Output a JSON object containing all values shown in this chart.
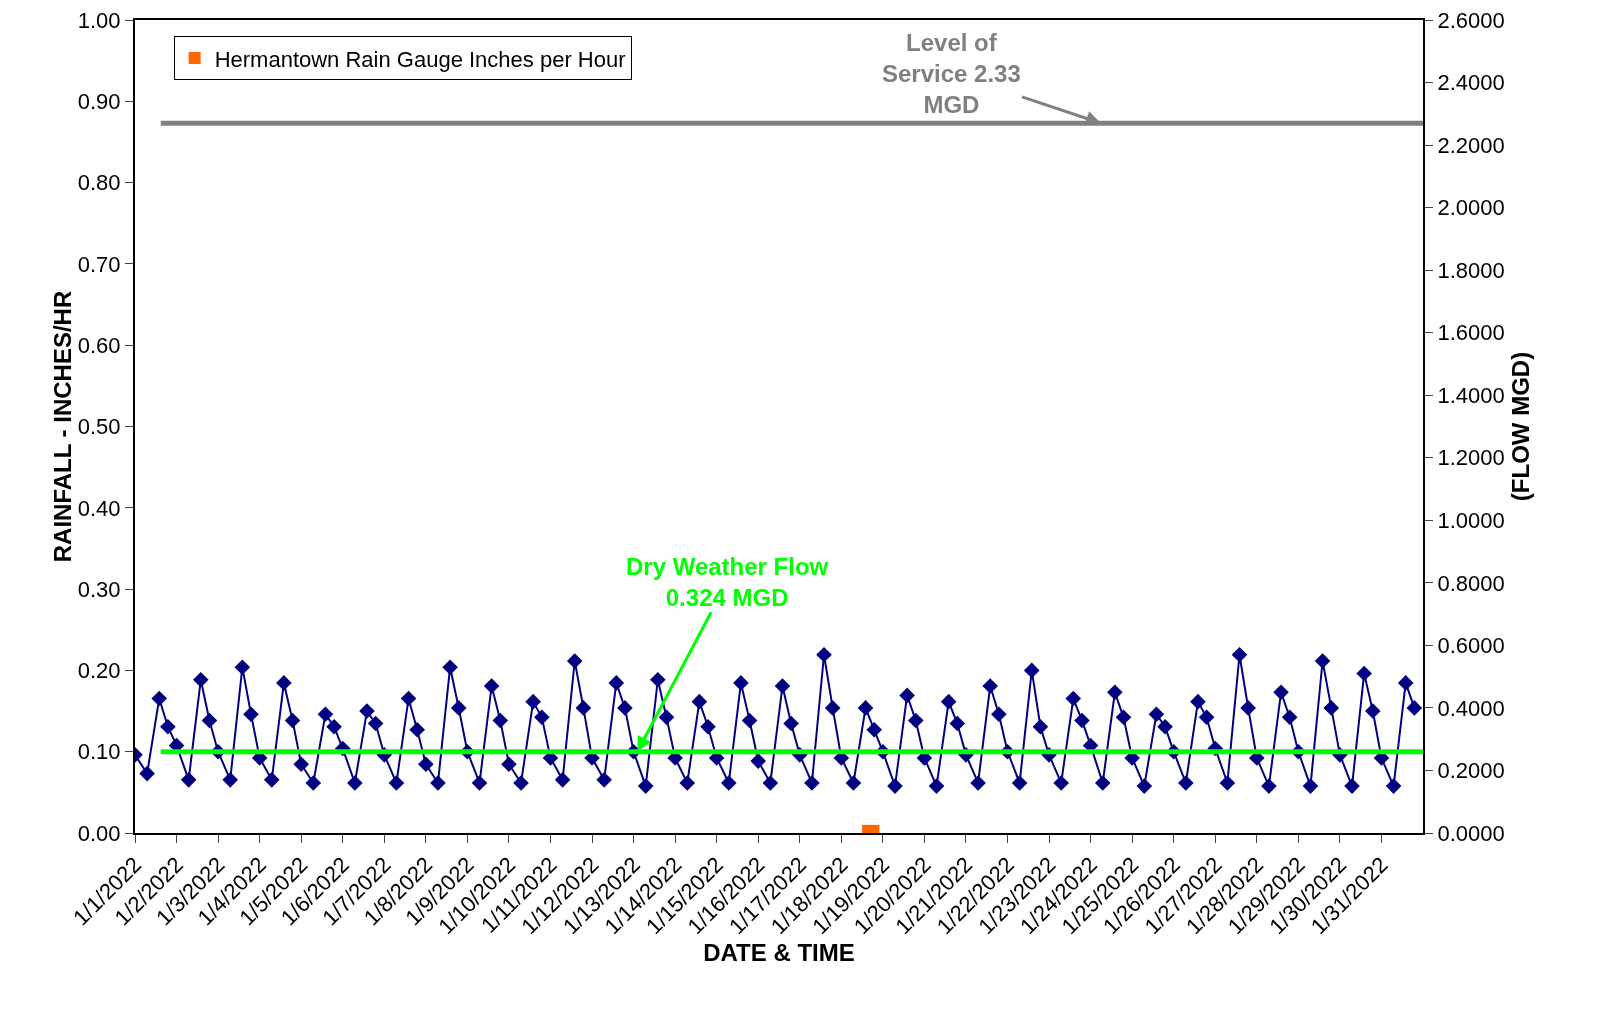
{
  "chart_data": {
    "type": "line",
    "xlabel": "DATE & TIME",
    "ylabel": "RAINFALL - INCHES/HR",
    "y2label": "(FLOW MGD)",
    "xlim": [
      "2022-01-01",
      "2022-02-01"
    ],
    "xticks": [
      {
        "value": "2022-01-01",
        "label": "1/1/2022"
      },
      {
        "value": "2022-01-02",
        "label": "1/2/2022"
      },
      {
        "value": "2022-01-03",
        "label": "1/3/2022"
      },
      {
        "value": "2022-01-04",
        "label": "1/4/2022"
      },
      {
        "value": "2022-01-05",
        "label": "1/5/2022"
      },
      {
        "value": "2022-01-06",
        "label": "1/6/2022"
      },
      {
        "value": "2022-01-07",
        "label": "1/7/2022"
      },
      {
        "value": "2022-01-08",
        "label": "1/8/2022"
      },
      {
        "value": "2022-01-09",
        "label": "1/9/2022"
      },
      {
        "value": "2022-01-10",
        "label": "1/10/2022"
      },
      {
        "value": "2022-01-11",
        "label": "1/11/2022"
      },
      {
        "value": "2022-01-12",
        "label": "1/12/2022"
      },
      {
        "value": "2022-01-13",
        "label": "1/13/2022"
      },
      {
        "value": "2022-01-14",
        "label": "1/14/2022"
      },
      {
        "value": "2022-01-15",
        "label": "1/15/2022"
      },
      {
        "value": "2022-01-16",
        "label": "1/16/2022"
      },
      {
        "value": "2022-01-17",
        "label": "1/17/2022"
      },
      {
        "value": "2022-01-18",
        "label": "1/18/2022"
      },
      {
        "value": "2022-01-19",
        "label": "1/19/2022"
      },
      {
        "value": "2022-01-20",
        "label": "1/20/2022"
      },
      {
        "value": "2022-01-21",
        "label": "1/21/2022"
      },
      {
        "value": "2022-01-22",
        "label": "1/22/2022"
      },
      {
        "value": "2022-01-23",
        "label": "1/23/2022"
      },
      {
        "value": "2022-01-24",
        "label": "1/24/2022"
      },
      {
        "value": "2022-01-25",
        "label": "1/25/2022"
      },
      {
        "value": "2022-01-26",
        "label": "1/26/2022"
      },
      {
        "value": "2022-01-27",
        "label": "1/27/2022"
      },
      {
        "value": "2022-01-28",
        "label": "1/28/2022"
      },
      {
        "value": "2022-01-29",
        "label": "1/29/2022"
      },
      {
        "value": "2022-01-30",
        "label": "1/30/2022"
      },
      {
        "value": "2022-01-31",
        "label": "1/31/2022"
      }
    ],
    "ylim": [
      0,
      1
    ],
    "yticks": [
      {
        "value": 0,
        "label": "0.00"
      },
      {
        "value": 0.1,
        "label": "0.10"
      },
      {
        "value": 0.2,
        "label": "0.20"
      },
      {
        "value": 0.3,
        "label": "0.30"
      },
      {
        "value": 0.4,
        "label": "0.40"
      },
      {
        "value": 0.5,
        "label": "0.50"
      },
      {
        "value": 0.6,
        "label": "0.60"
      },
      {
        "value": 0.7,
        "label": "0.70"
      },
      {
        "value": 0.8,
        "label": "0.80"
      },
      {
        "value": 0.9,
        "label": "0.90"
      },
      {
        "value": 1,
        "label": "1.00"
      }
    ],
    "y2lim": [
      0,
      2.6
    ],
    "y2ticks": [
      {
        "value": 0,
        "label": "0.0000"
      },
      {
        "value": 0.2,
        "label": "0.2000"
      },
      {
        "value": 0.4,
        "label": "0.4000"
      },
      {
        "value": 0.6,
        "label": "0.6000"
      },
      {
        "value": 0.8,
        "label": "0.8000"
      },
      {
        "value": 1,
        "label": "1.0000"
      },
      {
        "value": 1.2,
        "label": "1.2000"
      },
      {
        "value": 1.4,
        "label": "1.4000"
      },
      {
        "value": 1.6,
        "label": "1.6000"
      },
      {
        "value": 1.8,
        "label": "1.8000"
      },
      {
        "value": 2,
        "label": "2.0000"
      },
      {
        "value": 2.2,
        "label": "2.2000"
      },
      {
        "value": 2.4,
        "label": "2.4000"
      },
      {
        "value": 2.6,
        "label": "2.6000"
      }
    ],
    "grid": false,
    "legend": "top left",
    "line_style": "solid",
    "series": [
      {
        "name": "Hermantown Rain Gauge Inches per Hour",
        "type": "bar",
        "color": "#ff6600",
        "x": [
          "2022-01-18T17:00"
        ],
        "values": [
          0.01
        ]
      },
      {
        "axis": "y2",
        "color": "#000080",
        "marker": "diamond",
        "x": [
          "2022-01-01T00:00",
          "2022-01-01T07:00",
          "2022-01-01T14:00",
          "2022-01-01T19:00",
          "2022-01-02T00:00",
          "2022-01-02T07:00",
          "2022-01-02T14:00",
          "2022-01-02T19:00",
          "2022-01-03T00:00",
          "2022-01-03T07:00",
          "2022-01-03T14:00",
          "2022-01-03T19:00",
          "2022-01-04T00:00",
          "2022-01-04T07:00",
          "2022-01-04T14:00",
          "2022-01-04T19:00",
          "2022-01-05T00:00",
          "2022-01-05T07:00",
          "2022-01-05T14:00",
          "2022-01-05T19:00",
          "2022-01-06T00:00",
          "2022-01-06T07:00",
          "2022-01-06T14:00",
          "2022-01-06T19:00",
          "2022-01-07T00:00",
          "2022-01-07T07:00",
          "2022-01-07T14:00",
          "2022-01-07T19:00",
          "2022-01-08T00:00",
          "2022-01-08T07:00",
          "2022-01-08T14:00",
          "2022-01-08T19:00",
          "2022-01-09T00:00",
          "2022-01-09T07:00",
          "2022-01-09T14:00",
          "2022-01-09T19:00",
          "2022-01-10T00:00",
          "2022-01-10T07:00",
          "2022-01-10T14:00",
          "2022-01-10T19:00",
          "2022-01-11T00:00",
          "2022-01-11T07:00",
          "2022-01-11T14:00",
          "2022-01-11T19:00",
          "2022-01-12T00:00",
          "2022-01-12T07:00",
          "2022-01-12T14:00",
          "2022-01-12T19:00",
          "2022-01-13T00:00",
          "2022-01-13T07:00",
          "2022-01-13T14:00",
          "2022-01-13T19:00",
          "2022-01-14T00:00",
          "2022-01-14T07:00",
          "2022-01-14T14:00",
          "2022-01-14T19:00",
          "2022-01-15T00:00",
          "2022-01-15T07:00",
          "2022-01-15T14:00",
          "2022-01-15T19:00",
          "2022-01-16T00:00",
          "2022-01-16T07:00",
          "2022-01-16T14:00",
          "2022-01-16T19:00",
          "2022-01-17T00:00",
          "2022-01-17T07:00",
          "2022-01-17T14:00",
          "2022-01-17T19:00",
          "2022-01-18T00:00",
          "2022-01-18T07:00",
          "2022-01-18T14:00",
          "2022-01-18T19:00",
          "2022-01-19T00:00",
          "2022-01-19T07:00",
          "2022-01-19T14:00",
          "2022-01-19T19:00",
          "2022-01-20T00:00",
          "2022-01-20T07:00",
          "2022-01-20T14:00",
          "2022-01-20T19:00",
          "2022-01-21T00:00",
          "2022-01-21T07:00",
          "2022-01-21T14:00",
          "2022-01-21T19:00",
          "2022-01-22T00:00",
          "2022-01-22T07:00",
          "2022-01-22T14:00",
          "2022-01-22T19:00",
          "2022-01-23T00:00",
          "2022-01-23T07:00",
          "2022-01-23T14:00",
          "2022-01-23T19:00",
          "2022-01-24T00:00",
          "2022-01-24T07:00",
          "2022-01-24T14:00",
          "2022-01-24T19:00",
          "2022-01-25T00:00",
          "2022-01-25T07:00",
          "2022-01-25T14:00",
          "2022-01-25T19:00",
          "2022-01-26T00:00",
          "2022-01-26T07:00",
          "2022-01-26T14:00",
          "2022-01-26T19:00",
          "2022-01-27T00:00",
          "2022-01-27T07:00",
          "2022-01-27T14:00",
          "2022-01-27T19:00",
          "2022-01-28T00:00",
          "2022-01-28T07:00",
          "2022-01-28T14:00",
          "2022-01-28T19:00",
          "2022-01-29T00:00",
          "2022-01-29T07:00",
          "2022-01-29T14:00",
          "2022-01-29T19:00",
          "2022-01-30T00:00",
          "2022-01-30T07:00",
          "2022-01-30T14:00",
          "2022-01-30T19:00",
          "2022-01-31T00:00",
          "2022-01-31T07:00",
          "2022-01-31T14:00",
          "2022-01-31T19:00"
        ],
        "values": [
          0.25,
          0.19,
          0.43,
          0.34,
          0.28,
          0.17,
          0.49,
          0.36,
          0.26,
          0.17,
          0.53,
          0.38,
          0.24,
          0.17,
          0.48,
          0.36,
          0.22,
          0.16,
          0.38,
          0.34,
          0.27,
          0.16,
          0.39,
          0.35,
          0.25,
          0.16,
          0.43,
          0.33,
          0.22,
          0.16,
          0.53,
          0.4,
          0.26,
          0.16,
          0.47,
          0.36,
          0.22,
          0.16,
          0.42,
          0.37,
          0.24,
          0.17,
          0.55,
          0.4,
          0.24,
          0.17,
          0.48,
          0.4,
          0.26,
          0.15,
          0.49,
          0.37,
          0.24,
          0.16,
          0.42,
          0.34,
          0.24,
          0.16,
          0.48,
          0.36,
          0.23,
          0.16,
          0.47,
          0.35,
          0.25,
          0.16,
          0.57,
          0.4,
          0.24,
          0.16,
          0.4,
          0.33,
          0.26,
          0.15,
          0.44,
          0.36,
          0.24,
          0.15,
          0.42,
          0.35,
          0.25,
          0.16,
          0.47,
          0.38,
          0.26,
          0.16,
          0.52,
          0.34,
          0.25,
          0.16,
          0.43,
          0.36,
          0.28,
          0.16,
          0.45,
          0.37,
          0.24,
          0.15,
          0.38,
          0.34,
          0.26,
          0.16,
          0.42,
          0.37,
          0.27,
          0.16,
          0.57,
          0.4,
          0.24,
          0.15,
          0.45,
          0.37,
          0.26,
          0.15,
          0.55,
          0.4,
          0.25,
          0.15,
          0.51,
          0.39,
          0.24,
          0.15,
          0.48,
          0.4
        ]
      }
    ],
    "ref_lines": [
      {
        "axis": "y2",
        "value": 2.27,
        "label": "Level of Service 2.33 MGD",
        "color": "#808080"
      },
      {
        "axis": "y",
        "value": 0.1,
        "label": "Dry Weather Flow 0.324 MGD",
        "color": "#00ff00"
      }
    ]
  }
}
